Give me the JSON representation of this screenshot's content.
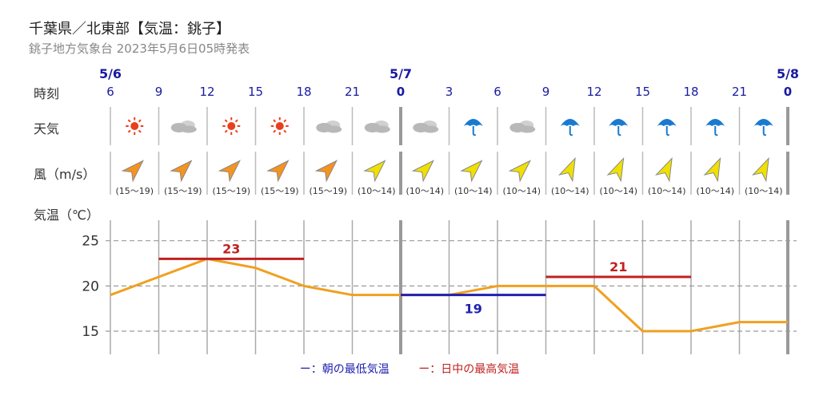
{
  "header": {
    "title": "千葉県／北東部【気温：銚子】",
    "subtitle": "銚子地方気象台 2023年5月6日05時発表"
  },
  "row_labels": {
    "time": "時刻",
    "weather": "天気",
    "wind": "風（m/s）",
    "temp": "気温（℃）"
  },
  "legend": {
    "low": "ー：朝の最低気温",
    "high": "ー：日中の最高気温"
  },
  "colors": {
    "line": "#f0a020",
    "low": "#2020b0",
    "high": "#c02020",
    "date": "#1a1aa0",
    "sun": "#e8401c",
    "cloud": "#b8b8b8",
    "umbrella": "#1a7ad0",
    "wind_orange": "#f5931e",
    "wind_yellow": "#f0e000"
  },
  "chart_data": {
    "type": "line",
    "date_labels": [
      {
        "label": "5/6",
        "at_index": 0
      },
      {
        "label": "5/7",
        "at_index": 6
      },
      {
        "label": "5/8",
        "at_index": 14
      }
    ],
    "hours": [
      "6",
      "9",
      "12",
      "15",
      "18",
      "21",
      "0",
      "3",
      "6",
      "9",
      "12",
      "15",
      "18",
      "21",
      "0"
    ],
    "weather": [
      "sun-icon",
      "cloud-icon",
      "sun-icon",
      "sun-icon",
      "cloud-icon",
      "cloud-icon",
      "cloud-icon",
      "umbrella-icon",
      "cloud-icon",
      "umbrella-icon",
      "umbrella-icon",
      "umbrella-icon",
      "umbrella-icon",
      "umbrella-icon"
    ],
    "wind": [
      {
        "direction": "NE",
        "range": "(15～19)"
      },
      {
        "direction": "NE",
        "range": "(15～19)"
      },
      {
        "direction": "NE",
        "range": "(15～19)"
      },
      {
        "direction": "NE",
        "range": "(15～19)"
      },
      {
        "direction": "NE",
        "range": "(15～19)"
      },
      {
        "direction": "NE",
        "range": "(10～14)"
      },
      {
        "direction": "NE",
        "range": "(10～14)"
      },
      {
        "direction": "NE",
        "range": "(10～14)"
      },
      {
        "direction": "NE",
        "range": "(10～14)"
      },
      {
        "direction": "N",
        "range": "(10～14)"
      },
      {
        "direction": "N",
        "range": "(10～14)"
      },
      {
        "direction": "N",
        "range": "(10～14)"
      },
      {
        "direction": "N",
        "range": "(10～14)"
      },
      {
        "direction": "N",
        "range": "(10～14)"
      }
    ],
    "temperature": [
      19,
      21,
      23,
      22,
      20,
      19,
      19,
      19,
      20,
      20,
      20,
      15,
      15,
      16,
      16
    ],
    "yticks": [
      15,
      20,
      25
    ],
    "ylim": [
      12,
      28
    ],
    "grid": true,
    "legend_position": "bottom",
    "min_temp": {
      "value": 19,
      "from_index": 6,
      "to_index": 9
    },
    "max_temps": [
      {
        "value": 23,
        "from_index": 1,
        "to_index": 4
      },
      {
        "value": 21,
        "from_index": 9,
        "to_index": 12
      }
    ]
  }
}
